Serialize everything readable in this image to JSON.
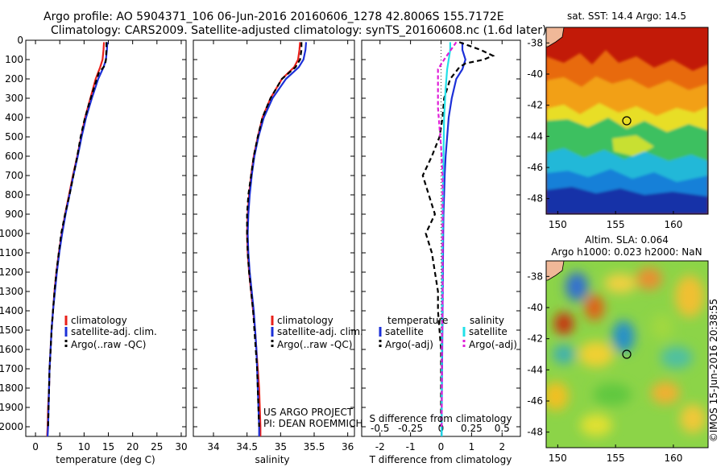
{
  "header": {
    "line1": "Argo profile: AO 5904371_106 06-Jun-2016 20160606_1278 42.8006S 155.7172E",
    "line2": "Climatology: CARS2009. Satellite-adjusted climatology: synTS_20160608.nc (1.6d later)"
  },
  "side_text": "©IMOS 15-Jun-2016 20:38:55",
  "credit": {
    "line1": "US ARGO PROJECT",
    "line2": "PI: DEAN ROEMMICH"
  },
  "colors": {
    "red": "#e8201a",
    "blue": "#1c30d8",
    "black": "#000000",
    "cyan": "#22e0e8",
    "magenta": "#e020d8"
  },
  "maps": {
    "sst": {
      "title": "sat. SST: 14.4 Argo: 14.5"
    },
    "sla": {
      "title1": "Altim. SLA: 0.064",
      "title2": "Argo h1000: 0.023 h2000: NaN"
    }
  },
  "chart_data": [
    {
      "type": "line",
      "xlabel": "temperature (deg C)",
      "ylabel": "",
      "xlim": [
        -2,
        31
      ],
      "ylim": [
        2050,
        0
      ],
      "xticks": [
        "0",
        "5",
        "10",
        "15",
        "20",
        "25",
        "30"
      ],
      "yticks": [
        "0",
        "100",
        "200",
        "300",
        "400",
        "500",
        "600",
        "700",
        "800",
        "900",
        "1000",
        "1100",
        "1200",
        "1300",
        "1400",
        "1500",
        "1600",
        "1700",
        "1800",
        "1900",
        "2000"
      ],
      "legend": [
        "climatology",
        "satellite-adj. clim.",
        "Argo(..raw -QC)"
      ],
      "series": [
        {
          "name": "climatology",
          "color": "red",
          "dash": "",
          "points": [
            [
              14.1,
              10
            ],
            [
              14.0,
              50
            ],
            [
              13.8,
              100
            ],
            [
              13.3,
              140
            ],
            [
              12.4,
              200
            ],
            [
              11.3,
              300
            ],
            [
              10.2,
              400
            ],
            [
              9.4,
              500
            ],
            [
              8.6,
              600
            ],
            [
              7.7,
              700
            ],
            [
              6.9,
              800
            ],
            [
              6.1,
              900
            ],
            [
              5.4,
              1000
            ],
            [
              4.8,
              1100
            ],
            [
              4.3,
              1200
            ],
            [
              3.9,
              1300
            ],
            [
              3.6,
              1400
            ],
            [
              3.3,
              1500
            ],
            [
              3.1,
              1600
            ],
            [
              2.9,
              1700
            ],
            [
              2.8,
              1800
            ],
            [
              2.6,
              1900
            ],
            [
              2.5,
              2000
            ],
            [
              2.4,
              2050
            ]
          ]
        },
        {
          "name": "satellite-adj. clim.",
          "color": "blue",
          "dash": "",
          "points": [
            [
              14.8,
              10
            ],
            [
              14.7,
              50
            ],
            [
              14.5,
              100
            ],
            [
              14.0,
              140
            ],
            [
              12.9,
              200
            ],
            [
              11.6,
              300
            ],
            [
              10.4,
              400
            ],
            [
              9.5,
              500
            ],
            [
              8.7,
              600
            ],
            [
              7.8,
              700
            ],
            [
              7.0,
              800
            ],
            [
              6.2,
              900
            ],
            [
              5.5,
              1000
            ],
            [
              4.9,
              1100
            ],
            [
              4.4,
              1200
            ],
            [
              4.0,
              1300
            ],
            [
              3.6,
              1400
            ],
            [
              3.3,
              1500
            ],
            [
              3.1,
              1600
            ],
            [
              2.9,
              1700
            ],
            [
              2.8,
              1800
            ],
            [
              2.7,
              1900
            ],
            [
              2.6,
              2000
            ],
            [
              2.5,
              2050
            ]
          ]
        },
        {
          "name": "Argo(..raw -QC)",
          "color": "black",
          "dash": "6,4",
          "points": [
            [
              14.6,
              10
            ],
            [
              14.6,
              50
            ],
            [
              14.5,
              100
            ],
            [
              14.3,
              130
            ],
            [
              13.0,
              170
            ],
            [
              12.0,
              250
            ],
            [
              11.0,
              330
            ],
            [
              10.0,
              420
            ],
            [
              9.3,
              500
            ],
            [
              8.6,
              600
            ],
            [
              7.8,
              700
            ],
            [
              7.0,
              800
            ],
            [
              6.1,
              900
            ],
            [
              5.3,
              1000
            ],
            [
              4.8,
              1100
            ],
            [
              4.3,
              1200
            ],
            [
              3.9,
              1300
            ],
            [
              3.6,
              1400
            ],
            [
              3.3,
              1500
            ],
            [
              3.1,
              1600
            ],
            [
              2.9,
              1700
            ],
            [
              2.8,
              1800
            ],
            [
              2.7,
              1900
            ],
            [
              2.6,
              2000
            ]
          ]
        }
      ]
    },
    {
      "type": "line",
      "xlabel": "salinity",
      "ylabel": "",
      "xlim": [
        33.7,
        36.1
      ],
      "ylim": [
        2050,
        0
      ],
      "xticks": [
        "34",
        "34.5",
        "35",
        "35.5",
        "36"
      ],
      "legend": [
        "climatology",
        "satellite-adj. clim.",
        "Argo(..raw -QC)"
      ],
      "series": [
        {
          "name": "climatology",
          "color": "red",
          "dash": "",
          "points": [
            [
              35.29,
              10
            ],
            [
              35.28,
              50
            ],
            [
              35.26,
              100
            ],
            [
              35.2,
              140
            ],
            [
              35.02,
              200
            ],
            [
              34.85,
              300
            ],
            [
              34.73,
              400
            ],
            [
              34.66,
              500
            ],
            [
              34.6,
              600
            ],
            [
              34.56,
              700
            ],
            [
              34.53,
              800
            ],
            [
              34.51,
              900
            ],
            [
              34.5,
              1000
            ],
            [
              34.51,
              1100
            ],
            [
              34.53,
              1200
            ],
            [
              34.56,
              1300
            ],
            [
              34.59,
              1400
            ],
            [
              34.62,
              1500
            ],
            [
              34.64,
              1600
            ],
            [
              34.66,
              1700
            ],
            [
              34.68,
              1800
            ],
            [
              34.69,
              1900
            ],
            [
              34.7,
              2000
            ],
            [
              34.7,
              2050
            ]
          ]
        },
        {
          "name": "satellite-adj. clim.",
          "color": "blue",
          "dash": "",
          "points": [
            [
              35.38,
              10
            ],
            [
              35.37,
              50
            ],
            [
              35.34,
              100
            ],
            [
              35.27,
              140
            ],
            [
              35.08,
              200
            ],
            [
              34.88,
              300
            ],
            [
              34.75,
              400
            ],
            [
              34.67,
              500
            ],
            [
              34.61,
              600
            ],
            [
              34.57,
              700
            ],
            [
              34.54,
              800
            ],
            [
              34.52,
              900
            ],
            [
              34.51,
              1000
            ],
            [
              34.52,
              1100
            ],
            [
              34.54,
              1200
            ],
            [
              34.57,
              1300
            ],
            [
              34.6,
              1400
            ],
            [
              34.62,
              1500
            ],
            [
              34.64,
              1600
            ],
            [
              34.65,
              1700
            ],
            [
              34.66,
              1800
            ],
            [
              34.67,
              1900
            ],
            [
              34.68,
              2000
            ],
            [
              34.68,
              2050
            ]
          ]
        },
        {
          "name": "Argo(..raw -QC)",
          "color": "black",
          "dash": "6,4",
          "points": [
            [
              35.31,
              10
            ],
            [
              35.31,
              50
            ],
            [
              35.29,
              100
            ],
            [
              35.22,
              140
            ],
            [
              35.02,
              200
            ],
            [
              34.85,
              300
            ],
            [
              34.73,
              400
            ],
            [
              34.66,
              500
            ],
            [
              34.6,
              600
            ],
            [
              34.56,
              700
            ],
            [
              34.52,
              800
            ],
            [
              34.5,
              900
            ],
            [
              34.5,
              1000
            ],
            [
              34.51,
              1100
            ],
            [
              34.53,
              1200
            ],
            [
              34.56,
              1300
            ],
            [
              34.59,
              1400
            ],
            [
              34.61,
              1500
            ],
            [
              34.63,
              1600
            ],
            [
              34.65,
              1700
            ],
            [
              34.66,
              1800
            ],
            [
              34.67,
              1900
            ],
            [
              34.68,
              2000
            ]
          ]
        }
      ]
    },
    {
      "type": "line",
      "xlabel": "T difference from climatology",
      "xlabel2": "S difference from climatology",
      "xlim": [
        -2.6,
        2.6
      ],
      "ylim": [
        2050,
        0
      ],
      "xticks": [
        "-2",
        "-1",
        "0",
        "1",
        "2"
      ],
      "xticks2": [
        "-0.5",
        "-0.25",
        "0",
        "0.25",
        "0.5"
      ],
      "legend_headers": [
        "temperature",
        "salinity"
      ],
      "legend": [
        "satellite",
        "Argo(-adj)",
        "satellite",
        "Argo(-adj)"
      ],
      "series": [
        {
          "name": "satellite",
          "color": "blue",
          "dash": "",
          "points": [
            [
              0.7,
              10
            ],
            [
              0.7,
              50
            ],
            [
              0.8,
              100
            ],
            [
              0.7,
              150
            ],
            [
              0.5,
              200
            ],
            [
              0.35,
              300
            ],
            [
              0.25,
              400
            ],
            [
              0.2,
              500
            ],
            [
              0.15,
              600
            ],
            [
              0.12,
              700
            ],
            [
              0.1,
              800
            ],
            [
              0.08,
              900
            ],
            [
              0.07,
              1000
            ],
            [
              0.06,
              1200
            ],
            [
              0.05,
              1400
            ],
            [
              0.04,
              1600
            ],
            [
              0.03,
              1800
            ],
            [
              0.02,
              2000
            ],
            [
              0.02,
              2050
            ]
          ]
        },
        {
          "name": "Argo(-adj)",
          "color": "black",
          "dash": "6,4",
          "points": [
            [
              0.6,
              10
            ],
            [
              1.3,
              50
            ],
            [
              1.7,
              80
            ],
            [
              1.4,
              100
            ],
            [
              0.8,
              120
            ],
            [
              0.6,
              140
            ],
            [
              0.3,
              200
            ],
            [
              0.1,
              300
            ],
            [
              0.05,
              400
            ],
            [
              -0.05,
              500
            ],
            [
              -0.3,
              600
            ],
            [
              -0.6,
              700
            ],
            [
              -0.4,
              800
            ],
            [
              -0.2,
              900
            ],
            [
              -0.5,
              1000
            ],
            [
              -0.3,
              1100
            ],
            [
              -0.2,
              1200
            ],
            [
              -0.1,
              1300
            ],
            [
              -0.1,
              1400
            ],
            [
              -0.05,
              1500
            ],
            [
              0.0,
              1600
            ],
            [
              0.0,
              1800
            ],
            [
              0.0,
              2000
            ]
          ]
        },
        {
          "name": "satellite",
          "color": "cyan",
          "dash": "",
          "points": [
            [
              0.3,
              10
            ],
            [
              0.3,
              50
            ],
            [
              0.25,
              100
            ],
            [
              0.2,
              150
            ],
            [
              0.15,
              250
            ],
            [
              0.1,
              400
            ],
            [
              0.08,
              600
            ],
            [
              0.06,
              800
            ],
            [
              0.05,
              1000
            ],
            [
              0.04,
              1200
            ],
            [
              0.03,
              1500
            ],
            [
              0.02,
              1800
            ],
            [
              0.02,
              2050
            ]
          ]
        },
        {
          "name": "Argo(-adj)",
          "color": "magenta",
          "dash": "5,3",
          "points": [
            [
              0.5,
              10
            ],
            [
              0.1,
              100
            ],
            [
              -0.1,
              150
            ],
            [
              -0.1,
              250
            ],
            [
              -0.1,
              350
            ],
            [
              -0.05,
              450
            ],
            [
              0.0,
              550
            ],
            [
              0.05,
              700
            ],
            [
              0.05,
              1000
            ],
            [
              0.05,
              1300
            ],
            [
              0.03,
              1600
            ],
            [
              0.02,
              2000
            ]
          ]
        }
      ]
    }
  ],
  "map_axes": {
    "xticks": [
      "150",
      "155",
      "160"
    ],
    "yticks": [
      "-38",
      "-40",
      "-42",
      "-44",
      "-46",
      "-48"
    ],
    "xlim": [
      149,
      163
    ],
    "ylim": [
      -49,
      -37
    ],
    "marker": {
      "lon": 155.7,
      "lat": -42.8
    }
  }
}
